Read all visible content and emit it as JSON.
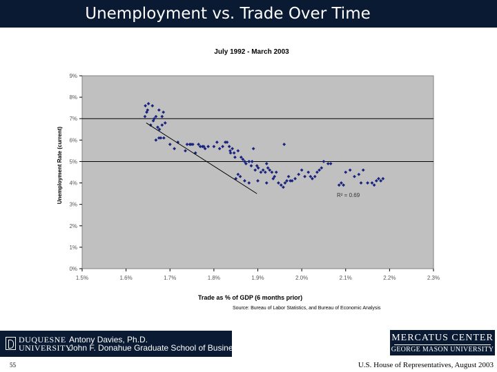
{
  "slide": {
    "title": "Unemployment vs. Trade Over Time",
    "source": "Source:   Bureau of Labor Statistics, and Bureau of Economic Analysis",
    "page_number": "55",
    "footer_right": "U.S. House of Representatives, August 2003",
    "logo_left": {
      "university_line1": "DUQUESNE",
      "university_line2": "UNIVERSITY",
      "author": "Antony Davies, Ph.D.",
      "school": "John F. Donahue Graduate School of Business"
    },
    "logo_right": {
      "line1": "MERCATUS CENTER",
      "line2": "GEORGE MASON UNIVERSITY"
    },
    "colors": {
      "title_bar": "#0b1a33",
      "plot_area": "#c0c0c0",
      "points": "#1a237e"
    }
  },
  "chart_data": {
    "type": "scatter",
    "title": "July 1992 - March 2003",
    "xlabel": "Trade as % of GDP (6 months prior)",
    "ylabel": "Unemployment Rate (current)",
    "xlim": [
      1.5,
      2.3
    ],
    "ylim": [
      0,
      9
    ],
    "x_ticks": [
      "1.5%",
      "1.6%",
      "1.7%",
      "1.8%",
      "1.9%",
      "2.0%",
      "2.1%",
      "2.2%",
      "2.3%"
    ],
    "y_ticks": [
      "0%",
      "1%",
      "2%",
      "3%",
      "4%",
      "5%",
      "6%",
      "7%",
      "8%",
      "9%"
    ],
    "gridlines_y": [
      5,
      7
    ],
    "annotation": "R² = 0.69",
    "trendline": {
      "x": [
        1.646,
        1.898
      ],
      "y": [
        6.8,
        3.5
      ]
    },
    "points": [
      [
        1.644,
        7.6
      ],
      [
        1.649,
        7.4
      ],
      [
        1.651,
        7.7
      ],
      [
        1.647,
        7.3
      ],
      [
        1.643,
        7.1
      ],
      [
        1.66,
        7.6
      ],
      [
        1.668,
        7.1
      ],
      [
        1.675,
        7.4
      ],
      [
        1.685,
        7.3
      ],
      [
        1.682,
        7.1
      ],
      [
        1.662,
        6.9
      ],
      [
        1.664,
        7.0
      ],
      [
        1.682,
        6.7
      ],
      [
        1.689,
        6.8
      ],
      [
        1.656,
        6.7
      ],
      [
        1.672,
        6.6
      ],
      [
        1.676,
        6.5
      ],
      [
        1.668,
        6.0
      ],
      [
        1.675,
        6.1
      ],
      [
        1.679,
        6.1
      ],
      [
        1.686,
        6.1
      ],
      [
        1.7,
        5.8
      ],
      [
        1.71,
        5.6
      ],
      [
        1.718,
        5.9
      ],
      [
        1.735,
        5.5
      ],
      [
        1.739,
        5.8
      ],
      [
        1.745,
        5.8
      ],
      [
        1.748,
        5.8
      ],
      [
        1.752,
        5.8
      ],
      [
        1.758,
        5.4
      ],
      [
        1.765,
        5.8
      ],
      [
        1.769,
        5.7
      ],
      [
        1.774,
        5.7
      ],
      [
        1.777,
        5.7
      ],
      [
        1.78,
        5.6
      ],
      [
        1.787,
        5.7
      ],
      [
        1.8,
        5.7
      ],
      [
        1.807,
        5.9
      ],
      [
        1.813,
        5.6
      ],
      [
        1.82,
        5.7
      ],
      [
        1.826,
        5.9
      ],
      [
        1.83,
        5.9
      ],
      [
        1.837,
        5.5
      ],
      [
        1.835,
        5.7
      ],
      [
        1.838,
        5.4
      ],
      [
        1.842,
        5.6
      ],
      [
        1.846,
        5.4
      ],
      [
        1.848,
        5.2
      ],
      [
        1.855,
        5.5
      ],
      [
        1.862,
        5.2
      ],
      [
        1.866,
        5.1
      ],
      [
        1.87,
        5.0
      ],
      [
        1.873,
        4.9
      ],
      [
        1.88,
        5.0
      ],
      [
        1.885,
        4.8
      ],
      [
        1.89,
        5.6
      ],
      [
        1.887,
        5.0
      ],
      [
        1.894,
        4.6
      ],
      [
        1.898,
        4.8
      ],
      [
        1.901,
        4.7
      ],
      [
        1.907,
        4.5
      ],
      [
        1.912,
        4.6
      ],
      [
        1.917,
        4.5
      ],
      [
        1.92,
        4.9
      ],
      [
        1.923,
        4.7
      ],
      [
        1.927,
        4.6
      ],
      [
        1.932,
        4.5
      ],
      [
        1.935,
        4.2
      ],
      [
        1.938,
        4.3
      ],
      [
        1.942,
        4.5
      ],
      [
        1.947,
        4.0
      ],
      [
        1.953,
        3.9
      ],
      [
        1.958,
        3.8
      ],
      [
        1.962,
        4.0
      ],
      [
        1.966,
        4.1
      ],
      [
        1.97,
        4.3
      ],
      [
        1.974,
        4.1
      ],
      [
        1.978,
        4.1
      ],
      [
        1.985,
        4.2
      ],
      [
        1.993,
        4.4
      ],
      [
        2.0,
        4.6
      ],
      [
        2.007,
        4.3
      ],
      [
        2.015,
        4.5
      ],
      [
        2.02,
        4.3
      ],
      [
        2.024,
        4.2
      ],
      [
        2.03,
        4.3
      ],
      [
        2.035,
        4.5
      ],
      [
        2.04,
        4.6
      ],
      [
        2.045,
        4.7
      ],
      [
        2.05,
        5.0
      ],
      [
        2.06,
        4.9
      ],
      [
        2.066,
        4.9
      ],
      [
        1.85,
        4.2
      ],
      [
        1.855,
        4.4
      ],
      [
        1.86,
        4.3
      ],
      [
        1.87,
        4.1
      ],
      [
        1.88,
        4.0
      ],
      [
        1.9,
        4.1
      ],
      [
        1.92,
        4.0
      ],
      [
        1.96,
        5.8
      ],
      [
        2.1,
        4.5
      ],
      [
        2.11,
        4.6
      ],
      [
        2.12,
        4.3
      ],
      [
        2.13,
        4.4
      ],
      [
        2.14,
        4.6
      ],
      [
        2.15,
        4.0
      ],
      [
        2.16,
        4.0
      ],
      [
        2.165,
        3.9
      ],
      [
        2.17,
        4.1
      ],
      [
        2.175,
        4.2
      ],
      [
        2.18,
        4.1
      ],
      [
        2.095,
        3.9
      ],
      [
        2.085,
        3.9
      ],
      [
        2.09,
        4.0
      ],
      [
        2.135,
        4.0
      ],
      [
        2.185,
        4.2
      ]
    ]
  }
}
